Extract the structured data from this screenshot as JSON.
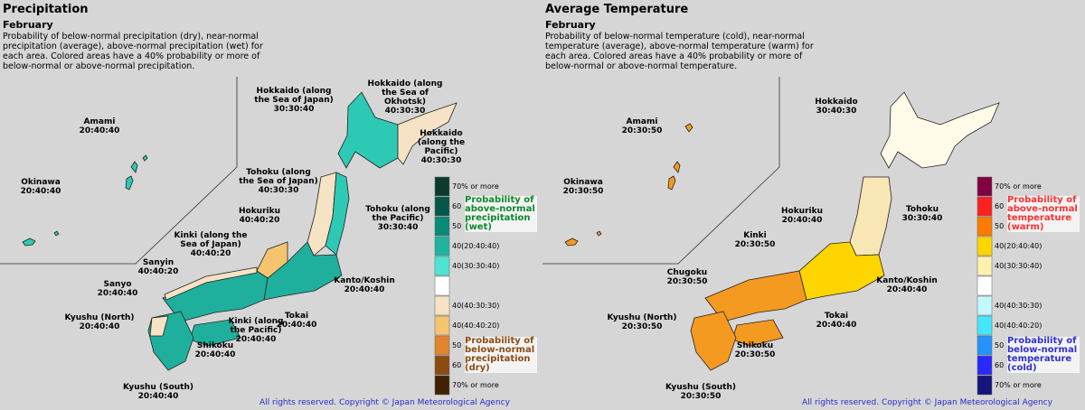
{
  "panels": [
    {
      "title": "Precipitation",
      "month": "February",
      "description": "Probability of below-normal precipitation (dry), near-normal precipitation (average), above-normal precipitation (wet) for each area. Colored areas have a 40% probability or more of below-normal or above-normal precipitation.",
      "regions": [
        {
          "name": "Amami",
          "probabilities": "20:40:40"
        },
        {
          "name": "Okinawa",
          "probabilities": "20:40:40"
        },
        {
          "name": "Hokkaido (along the Sea of Japan)",
          "probabilities": "30:30:40"
        },
        {
          "name": "Hokkaido (along the Sea of Okhotsk)",
          "probabilities": "40:30:30"
        },
        {
          "name": "Hokkaido (along the Pacific)",
          "probabilities": "40:30:30"
        },
        {
          "name": "Tohoku (along the Sea of Japan)",
          "probabilities": "40:30:30"
        },
        {
          "name": "Hokuriku",
          "probabilities": "40:40:20"
        },
        {
          "name": "Tohoku (along the Pacific)",
          "probabilities": "30:30:40"
        },
        {
          "name": "Kinki (along the Sea of Japan)",
          "probabilities": "40:40:20"
        },
        {
          "name": "Sanyin",
          "probabilities": "40:40:20"
        },
        {
          "name": "Sanyo",
          "probabilities": "20:40:40"
        },
        {
          "name": "Kanto/Koshin",
          "probabilities": "20:40:40"
        },
        {
          "name": "Kyushu (North)",
          "probabilities": "20:40:40"
        },
        {
          "name": "Kinki (along the Pacific)",
          "probabilities": "20:40:40"
        },
        {
          "name": "Tokai",
          "probabilities": "20:40:40"
        },
        {
          "name": "Shikoku",
          "probabilities": "20:40:40"
        },
        {
          "name": "Kyushu (South)",
          "probabilities": "20:40:40"
        }
      ],
      "legend": {
        "swatches": [
          {
            "label": "70% or more",
            "color": "#0b3b2c"
          },
          {
            "label": "60",
            "color": "#05574a"
          },
          {
            "label": "50",
            "color": "#0a8a78"
          },
          {
            "label": "40(20:40:40)",
            "color": "#22b3a0"
          },
          {
            "label": "40(30:30:40)",
            "color": "#4fe3d2"
          },
          {
            "label": null,
            "color": "#ffffff"
          },
          {
            "label": "40(40:30:30)",
            "color": "#f6e2c4"
          },
          {
            "label": "40(40:40:20)",
            "color": "#f5c46e"
          },
          {
            "label": "50",
            "color": "#e0842e"
          },
          {
            "label": "60",
            "color": "#8b4c12"
          },
          {
            "label": "70% or more",
            "color": "#3f2104"
          }
        ],
        "above_label": "Probability of above-normal precipitation (wet)",
        "above_color": "#0a8a2a",
        "below_label": "Probability of below-normal precipitation (dry)",
        "below_color": "#8b4c12"
      },
      "copyright": "All rights reserved. Copyright © Japan Meteorological Agency"
    },
    {
      "title": "Average Temperature",
      "month": "February",
      "description": "Probability of below-normal temperature (cold), near-normal temperature (average), above-normal temperature (warm) for each area. Colored areas have a 40% probability or more of below-normal or above-normal temperature.",
      "regions": [
        {
          "name": "Amami",
          "probabilities": "20:30:50"
        },
        {
          "name": "Okinawa",
          "probabilities": "20:30:50"
        },
        {
          "name": "Hokkaido",
          "probabilities": "30:40:30"
        },
        {
          "name": "Hokuriku",
          "probabilities": "20:40:40"
        },
        {
          "name": "Tohoku",
          "probabilities": "30:30:40"
        },
        {
          "name": "Kinki",
          "probabilities": "20:30:50"
        },
        {
          "name": "Chugoku",
          "probabilities": "20:30:50"
        },
        {
          "name": "Kanto/Koshin",
          "probabilities": "20:40:40"
        },
        {
          "name": "Kyushu (North)",
          "probabilities": "20:30:50"
        },
        {
          "name": "Tokai",
          "probabilities": "20:40:40"
        },
        {
          "name": "Shikoku",
          "probabilities": "20:30:50"
        },
        {
          "name": "Kyushu (South)",
          "probabilities": "20:30:50"
        }
      ],
      "legend": {
        "swatches": [
          {
            "label": "70% or more",
            "color": "#800040"
          },
          {
            "label": "60",
            "color": "#ff2020"
          },
          {
            "label": "50",
            "color": "#ff7a00"
          },
          {
            "label": "40(20:40:40)",
            "color": "#ffd500"
          },
          {
            "label": "40(30:30:40)",
            "color": "#fff0b0"
          },
          {
            "label": null,
            "color": "#ffffff"
          },
          {
            "label": "40(40:30:30)",
            "color": "#c4f8ff"
          },
          {
            "label": "40(40:40:20)",
            "color": "#45e6ff"
          },
          {
            "label": "50",
            "color": "#2592ff"
          },
          {
            "label": "60",
            "color": "#2828ff"
          },
          {
            "label": "70% or more",
            "color": "#14147a"
          }
        ],
        "above_label": "Probability of above-normal temperature (warm)",
        "above_color": "#ff3030",
        "below_label": "Probability of below-normal temperature (cold)",
        "below_color": "#3030d0"
      },
      "copyright": "All rights reserved. Copyright © Japan Meteorological Agency"
    }
  ]
}
